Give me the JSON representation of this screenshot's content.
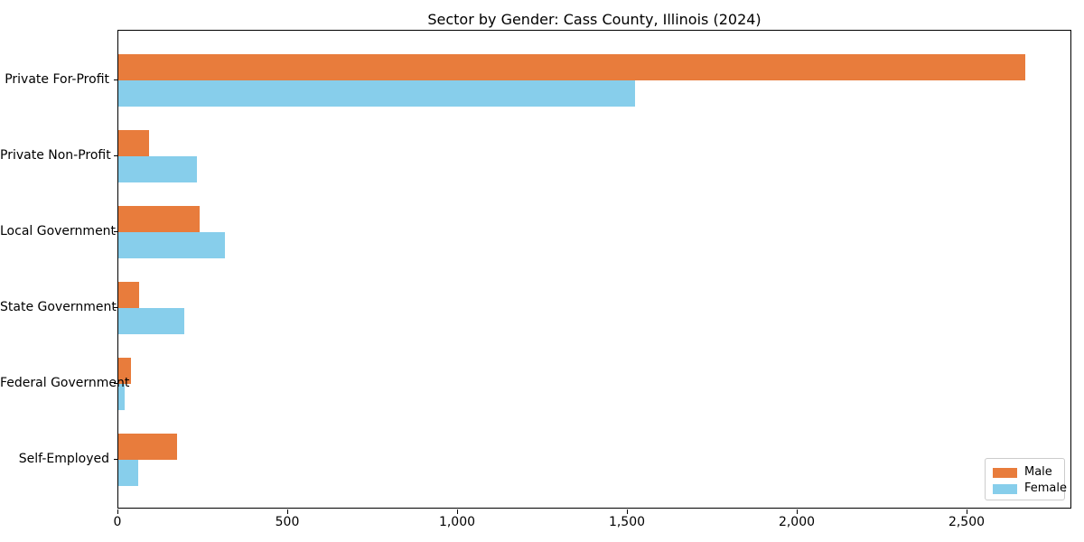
{
  "chart_data": {
    "type": "bar",
    "orientation": "horizontal",
    "title": "Sector by Gender: Cass County, Illinois (2024)",
    "categories": [
      "Private For-Profit",
      "Private Non-Profit",
      "Local Government",
      "State Government",
      "Federal Government",
      "Self-Employed"
    ],
    "series": [
      {
        "name": "Male",
        "color": "#e87c3c",
        "values": [
          2670,
          90,
          240,
          61,
          37,
          172
        ]
      },
      {
        "name": "Female",
        "color": "#87ceeb",
        "values": [
          1520,
          231,
          313,
          194,
          19,
          59
        ]
      }
    ],
    "xlabel": "",
    "ylabel": "",
    "xlim": [
      0,
      2808
    ],
    "x_ticks": [
      0,
      500,
      1000,
      1500,
      2000,
      2500
    ],
    "x_tick_labels": [
      "0",
      "500",
      "1,000",
      "1,500",
      "2,000",
      "2,500"
    ],
    "grid": false,
    "legend": {
      "position": "lower right"
    },
    "background_color": "#ffffff",
    "spine_color": "#000000"
  }
}
